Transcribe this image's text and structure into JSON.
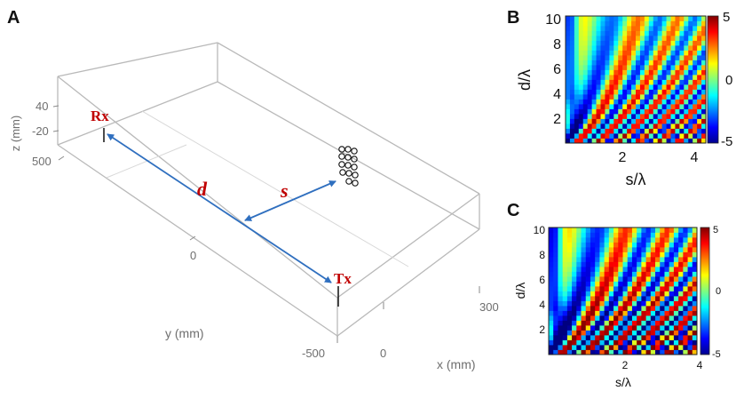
{
  "panels": {
    "a_label": "A",
    "b_label": "B",
    "c_label": "C"
  },
  "panel_a": {
    "z_axis_label": "z (mm)",
    "z_ticks": [
      "40",
      "-20"
    ],
    "y_axis_label": "y (mm)",
    "y_ticks": [
      "500",
      "0",
      "-500"
    ],
    "x_axis_label": "x (mm)",
    "x_ticks": [
      "0",
      "300"
    ],
    "rx_label": "Rx",
    "tx_label": "Tx",
    "d_label": "d",
    "s_label": "s",
    "label_color": "#c00000",
    "arrow_color": "#2f6fbf"
  },
  "chart_data": [
    {
      "type": "heatmap",
      "panel": "B",
      "xlabel": "s/λ",
      "ylabel": "d/λ",
      "x_ticks": [
        "2",
        "4"
      ],
      "y_ticks": [
        "2",
        "4",
        "6",
        "8",
        "10"
      ],
      "xlim": [
        0.4,
        4.3
      ],
      "ylim": [
        0.3,
        10.3
      ],
      "colorbar": {
        "ticks": [
          "5",
          "0",
          "-5"
        ],
        "range": [
          -5,
          5
        ]
      },
      "colormap": "jet"
    },
    {
      "type": "heatmap",
      "panel": "C",
      "xlabel": "s/λ",
      "ylabel": "d/λ",
      "x_ticks": [
        "2",
        "4"
      ],
      "y_ticks": [
        "2",
        "4",
        "6",
        "8",
        "10"
      ],
      "xlim": [
        0.4,
        4.3
      ],
      "ylim": [
        0.3,
        10.3
      ],
      "colorbar": {
        "ticks": [
          "5",
          "0",
          "-5"
        ],
        "range": [
          -5,
          5
        ]
      },
      "colormap": "jet"
    }
  ]
}
